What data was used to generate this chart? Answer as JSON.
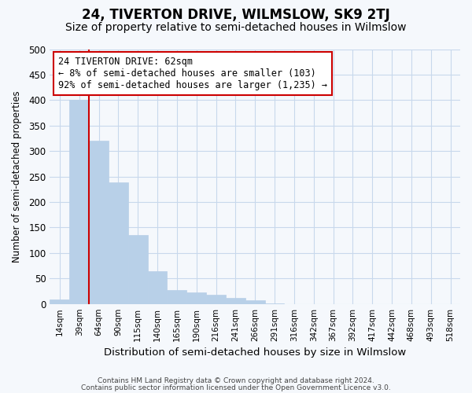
{
  "title": "24, TIVERTON DRIVE, WILMSLOW, SK9 2TJ",
  "subtitle": "Size of property relative to semi-detached houses in Wilmslow",
  "xlabel": "Distribution of semi-detached houses by size in Wilmslow",
  "ylabel": "Number of semi-detached properties",
  "footnote1": "Contains HM Land Registry data © Crown copyright and database right 2024.",
  "footnote2": "Contains public sector information licensed under the Open Government Licence v3.0.",
  "categories": [
    "14sqm",
    "39sqm",
    "64sqm",
    "90sqm",
    "115sqm",
    "140sqm",
    "165sqm",
    "190sqm",
    "216sqm",
    "241sqm",
    "266sqm",
    "291sqm",
    "316sqm",
    "342sqm",
    "367sqm",
    "392sqm",
    "417sqm",
    "442sqm",
    "468sqm",
    "493sqm",
    "518sqm"
  ],
  "values": [
    8,
    400,
    320,
    238,
    135,
    65,
    27,
    23,
    18,
    12,
    7,
    1,
    0,
    0,
    0,
    0,
    0,
    0,
    0,
    0,
    0
  ],
  "bar_color": "#b8d0e8",
  "vline_bar_index": 2,
  "vline_color": "#cc0000",
  "annotation_line1": "24 TIVERTON DRIVE: 62sqm",
  "annotation_line2": "← 8% of semi-detached houses are smaller (103)",
  "annotation_line3": "92% of semi-detached houses are larger (1,235) →",
  "ylim": [
    0,
    500
  ],
  "yticks": [
    0,
    50,
    100,
    150,
    200,
    250,
    300,
    350,
    400,
    450,
    500
  ],
  "bg_color": "#f5f8fc",
  "grid_color": "#c8d8ec",
  "title_fontsize": 12,
  "subtitle_fontsize": 10
}
